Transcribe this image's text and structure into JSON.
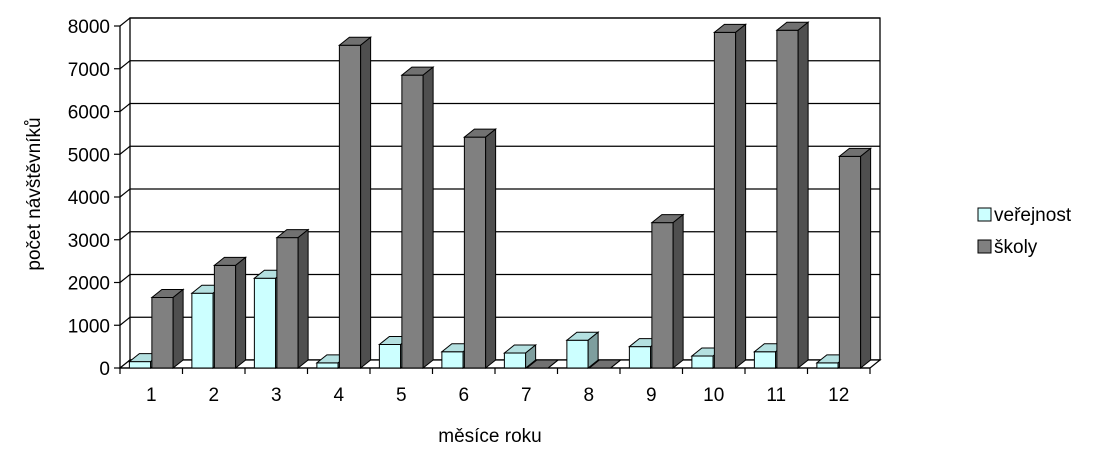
{
  "chart_data": {
    "type": "bar",
    "title": "",
    "xlabel": "měsíce roku",
    "ylabel": "počet návštěvníků",
    "categories": [
      "1",
      "2",
      "3",
      "4",
      "5",
      "6",
      "7",
      "8",
      "9",
      "10",
      "11",
      "12"
    ],
    "ylim": [
      0,
      8000
    ],
    "yticks": [
      "0",
      "1000",
      "2000",
      "3000",
      "4000",
      "5000",
      "6000",
      "7000",
      "8000"
    ],
    "grid": true,
    "style": "3d-clustered",
    "legend_position": "right",
    "series": [
      {
        "name": "veřejnost",
        "color": "#ccffff",
        "values": [
          150,
          1750,
          2100,
          120,
          550,
          380,
          350,
          650,
          500,
          280,
          380,
          120
        ]
      },
      {
        "name": "školy",
        "color": "#808080",
        "values": [
          1650,
          2400,
          3050,
          7550,
          6850,
          5400,
          0,
          0,
          3400,
          7850,
          7900,
          4950
        ]
      }
    ]
  }
}
